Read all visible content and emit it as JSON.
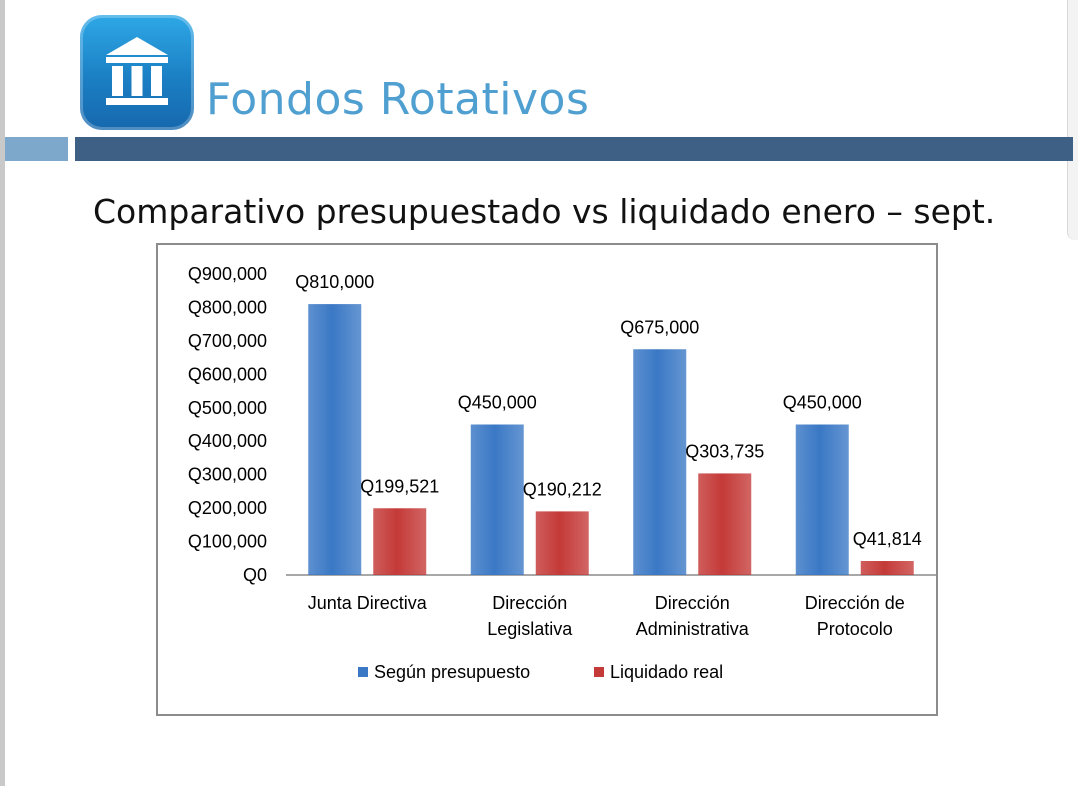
{
  "header": {
    "title": "Fondos Rotativos",
    "logo_icon": "bank-building-icon"
  },
  "slide": {
    "subtitle": "Comparativo presupuestado vs liquidado enero – sept."
  },
  "colors": {
    "title": "#4f9fd1",
    "band_dark": "#3d6084",
    "band_light": "#7ea7cc",
    "series_budget": "#3a78c5",
    "series_actual": "#c43a38"
  },
  "chart_data": {
    "type": "bar",
    "title": "",
    "xlabel": "",
    "ylabel": "",
    "ylim": [
      0,
      900000
    ],
    "yticks": [
      0,
      100000,
      200000,
      300000,
      400000,
      500000,
      600000,
      700000,
      800000,
      900000
    ],
    "ytick_labels": [
      "Q0",
      "Q100,000",
      "Q200,000",
      "Q300,000",
      "Q400,000",
      "Q500,000",
      "Q600,000",
      "Q700,000",
      "Q800,000",
      "Q900,000"
    ],
    "categories": [
      [
        "Junta Directiva"
      ],
      [
        "Dirección",
        "Legislativa"
      ],
      [
        "Dirección",
        "Administrativa"
      ],
      [
        "Dirección de",
        "Protocolo"
      ]
    ],
    "series": [
      {
        "name": "Según presupuesto",
        "color": "#3a78c5",
        "values": [
          810000,
          450000,
          675000,
          450000
        ],
        "labels": [
          "Q810,000",
          "Q450,000",
          "Q675,000",
          "Q450,000"
        ]
      },
      {
        "name": "Liquidado real",
        "color": "#c43a38",
        "values": [
          199521,
          190212,
          303735,
          41814
        ],
        "labels": [
          "Q199,521",
          "Q190,212",
          "Q303,735",
          "Q41,814"
        ]
      }
    ],
    "grid": false,
    "legend": "bottom"
  }
}
